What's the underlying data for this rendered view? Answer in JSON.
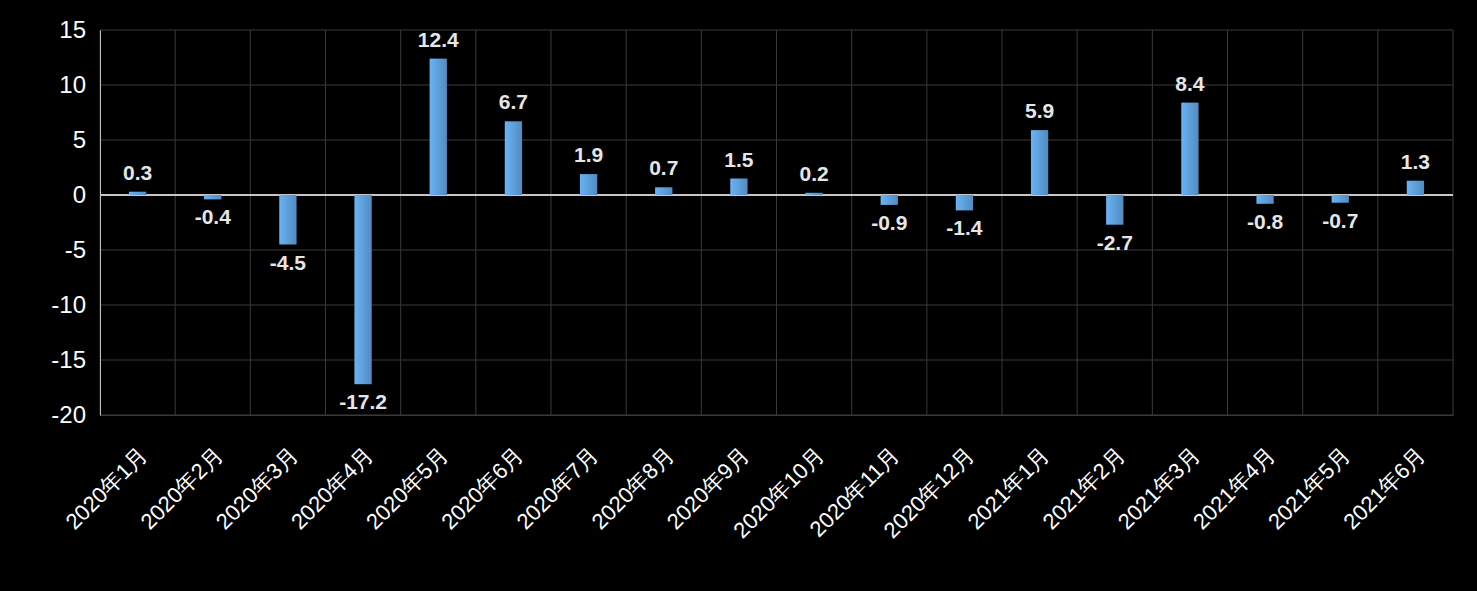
{
  "chart_data": {
    "type": "bar",
    "categories": [
      "2020年1月",
      "2020年2月",
      "2020年3月",
      "2020年4月",
      "2020年5月",
      "2020年6月",
      "2020年7月",
      "2020年8月",
      "2020年9月",
      "2020年10月",
      "2020年11月",
      "2020年12月",
      "2021年1月",
      "2021年2月",
      "2021年3月",
      "2021年4月",
      "2021年5月",
      "2021年6月"
    ],
    "values": [
      0.3,
      -0.4,
      -4.5,
      -17.2,
      12.4,
      6.7,
      1.9,
      0.7,
      1.5,
      0.2,
      -0.9,
      -1.4,
      5.9,
      -2.7,
      8.4,
      -0.8,
      -0.7,
      1.3
    ],
    "color": "#5b9bd5",
    "ylim": [
      -20,
      15
    ],
    "yticks": [
      -20,
      -15,
      -10,
      -5,
      0,
      5,
      10,
      15
    ],
    "grid": true,
    "data_labels": true
  }
}
